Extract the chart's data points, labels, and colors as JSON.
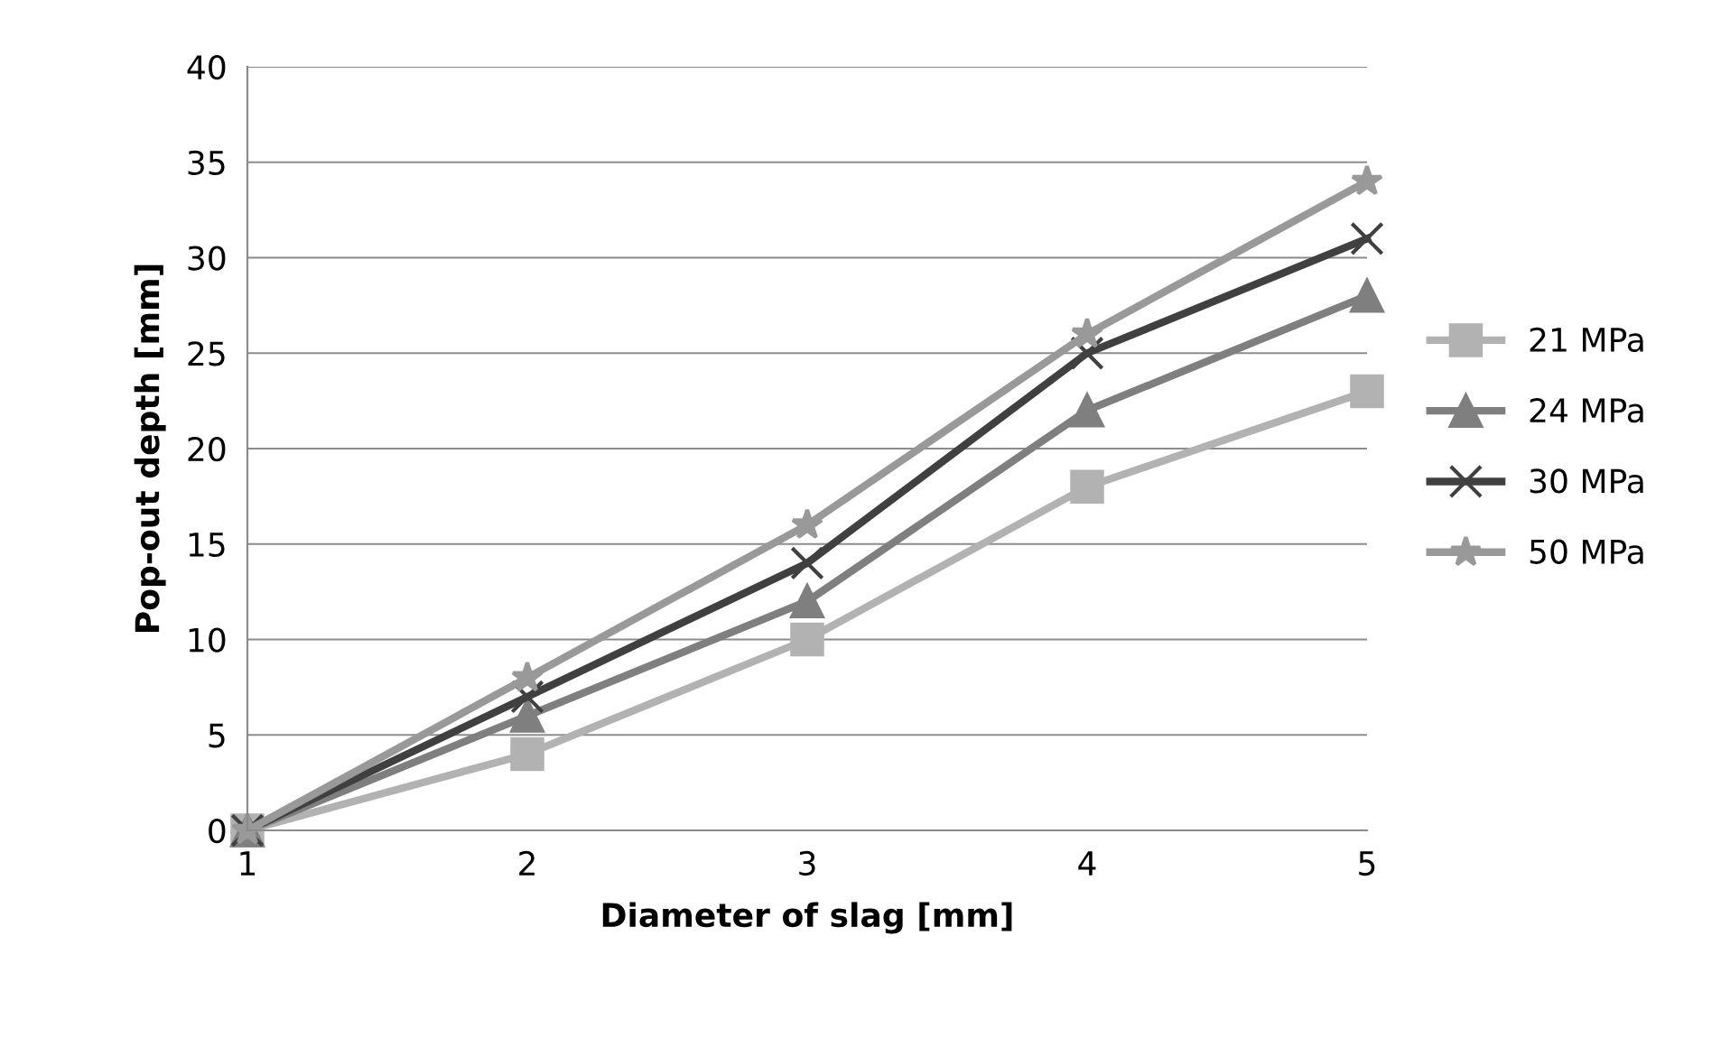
{
  "chart_data": {
    "type": "line",
    "xlabel": "Diameter of slag [mm]",
    "ylabel": "Pop-out depth [mm]",
    "x": [
      1,
      2,
      3,
      4,
      5
    ],
    "xlim": [
      1,
      5
    ],
    "xticks": [
      1,
      2,
      3,
      4,
      5
    ],
    "ylim": [
      0,
      40
    ],
    "yticks": [
      0,
      5,
      10,
      15,
      20,
      25,
      30,
      35,
      40
    ],
    "grid": "y",
    "legend": "right",
    "line_style": "solid",
    "series": [
      {
        "name": "21 MPa",
        "color": "#b2b2b2",
        "marker": "square",
        "values": [
          0,
          4,
          10,
          18,
          23
        ]
      },
      {
        "name": "24 MPa",
        "color": "#7f7f7f",
        "marker": "triangle",
        "values": [
          0,
          6,
          12,
          22,
          28
        ]
      },
      {
        "name": "30 MPa",
        "color": "#404040",
        "marker": "cross",
        "values": [
          0,
          7,
          14,
          25,
          31
        ]
      },
      {
        "name": "50 MPa",
        "color": "#999999",
        "marker": "star",
        "values": [
          0,
          8,
          16,
          26,
          34
        ]
      }
    ]
  }
}
